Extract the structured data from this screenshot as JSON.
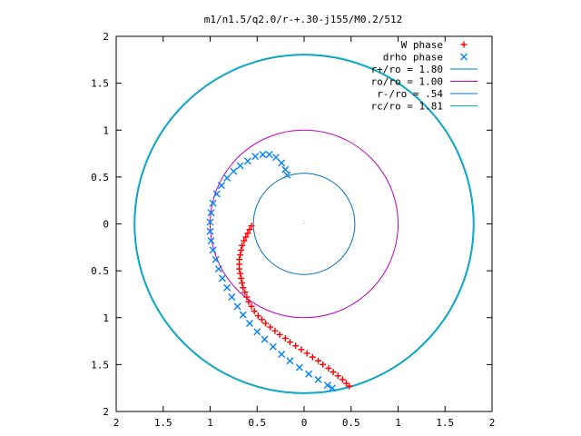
{
  "chart_data": {
    "type": "scatter",
    "title": "m1/n1.5/q2.0/r-+.30-j155/M0.2/512",
    "xlabel": "",
    "ylabel": "",
    "xlim": [
      -2,
      2
    ],
    "ylim": [
      -2,
      2
    ],
    "grid": false,
    "legend_position": "top-right",
    "x_tick_labels": [
      "2",
      "1.5",
      "1",
      "0.5",
      "0",
      "0.5",
      "1",
      "1.5",
      "2"
    ],
    "x_tick_values": [
      -2,
      -1.5,
      -1,
      -0.5,
      0,
      0.5,
      1,
      1.5,
      2
    ],
    "y_tick_labels": [
      "2",
      "1.5",
      "1",
      "0.5",
      "0",
      "0.5",
      "1",
      "1.5",
      "2"
    ],
    "y_tick_values": [
      2,
      1.5,
      1,
      0.5,
      0,
      -0.5,
      -1,
      -1.5,
      -2
    ],
    "series": [
      {
        "name": "W phase",
        "kind": "points",
        "marker": "plus",
        "color": "#ff0000",
        "points": [
          [
            -0.56,
            -0.02
          ],
          [
            -0.58,
            -0.06
          ],
          [
            -0.6,
            -0.1
          ],
          [
            -0.62,
            -0.14
          ],
          [
            -0.64,
            -0.18
          ],
          [
            -0.66,
            -0.23
          ],
          [
            -0.67,
            -0.28
          ],
          [
            -0.68,
            -0.33
          ],
          [
            -0.69,
            -0.38
          ],
          [
            -0.69,
            -0.43
          ],
          [
            -0.69,
            -0.48
          ],
          [
            -0.68,
            -0.53
          ],
          [
            -0.67,
            -0.58
          ],
          [
            -0.66,
            -0.63
          ],
          [
            -0.65,
            -0.68
          ],
          [
            -0.63,
            -0.73
          ],
          [
            -0.61,
            -0.78
          ],
          [
            -0.59,
            -0.83
          ],
          [
            -0.56,
            -0.88
          ],
          [
            -0.53,
            -0.93
          ],
          [
            -0.49,
            -0.98
          ],
          [
            -0.45,
            -1.02
          ],
          [
            -0.41,
            -1.06
          ],
          [
            -0.36,
            -1.1
          ],
          [
            -0.31,
            -1.14
          ],
          [
            -0.26,
            -1.18
          ],
          [
            -0.2,
            -1.22
          ],
          [
            -0.15,
            -1.26
          ],
          [
            -0.09,
            -1.3
          ],
          [
            -0.03,
            -1.34
          ],
          [
            0.03,
            -1.38
          ],
          [
            0.09,
            -1.42
          ],
          [
            0.15,
            -1.46
          ],
          [
            0.2,
            -1.5
          ],
          [
            0.26,
            -1.54
          ],
          [
            0.31,
            -1.58
          ],
          [
            0.36,
            -1.62
          ],
          [
            0.41,
            -1.66
          ],
          [
            0.45,
            -1.7
          ],
          [
            0.48,
            -1.73
          ]
        ]
      },
      {
        "name": "drho phase",
        "kind": "points",
        "marker": "cross",
        "color": "#0080ff",
        "points": [
          [
            -0.18,
            0.52
          ],
          [
            -0.2,
            0.58
          ],
          [
            -0.24,
            0.65
          ],
          [
            -0.3,
            0.71
          ],
          [
            -0.37,
            0.74
          ],
          [
            -0.44,
            0.74
          ],
          [
            -0.52,
            0.72
          ],
          [
            -0.6,
            0.67
          ],
          [
            -0.68,
            0.62
          ],
          [
            -0.75,
            0.56
          ],
          [
            -0.82,
            0.49
          ],
          [
            -0.88,
            0.41
          ],
          [
            -0.93,
            0.32
          ],
          [
            -0.97,
            0.22
          ],
          [
            -0.99,
            0.12
          ],
          [
            -1.0,
            0.02
          ],
          [
            -1.0,
            -0.08
          ],
          [
            -0.99,
            -0.18
          ],
          [
            -0.97,
            -0.28
          ],
          [
            -0.94,
            -0.38
          ],
          [
            -0.91,
            -0.48
          ],
          [
            -0.87,
            -0.58
          ],
          [
            -0.82,
            -0.68
          ],
          [
            -0.77,
            -0.78
          ],
          [
            -0.71,
            -0.88
          ],
          [
            -0.65,
            -0.97
          ],
          [
            -0.58,
            -1.06
          ],
          [
            -0.5,
            -1.15
          ],
          [
            -0.42,
            -1.23
          ],
          [
            -0.33,
            -1.31
          ],
          [
            -0.24,
            -1.39
          ],
          [
            -0.15,
            -1.46
          ],
          [
            -0.05,
            -1.53
          ],
          [
            0.05,
            -1.6
          ],
          [
            0.15,
            -1.66
          ],
          [
            0.25,
            -1.72
          ],
          [
            0.3,
            -1.75
          ]
        ]
      },
      {
        "name": "r+/ro = 1.80",
        "kind": "circle",
        "radius": 1.8,
        "color": "#0080c0"
      },
      {
        "name": "ro/ro = 1.00",
        "kind": "circle",
        "radius": 1.0,
        "color": "#c000c0"
      },
      {
        "name": "r-/ro = .54",
        "kind": "circle",
        "radius": 0.54,
        "color": "#0070c0"
      },
      {
        "name": "rc/ro = 1.81",
        "kind": "circle",
        "radius": 1.81,
        "color": "#00c0c0"
      }
    ]
  }
}
